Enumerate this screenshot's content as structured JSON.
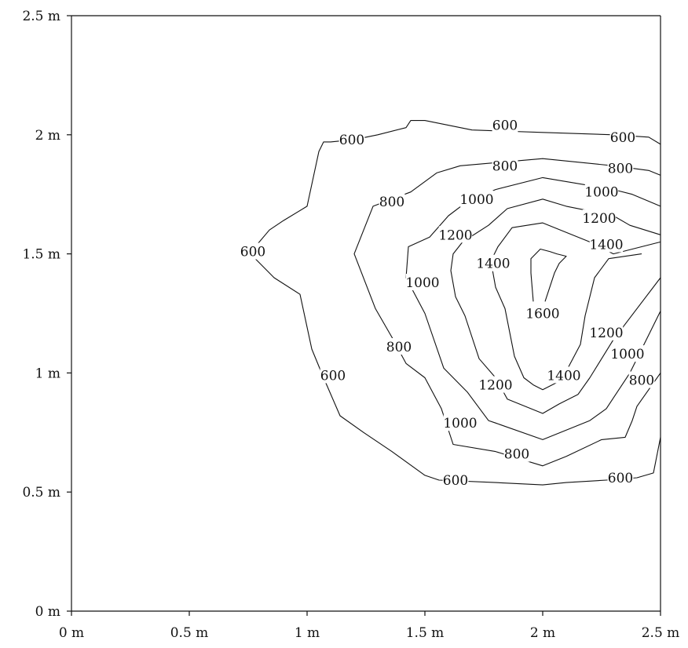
{
  "chart_data": {
    "type": "contour",
    "title": "",
    "xlabel": "",
    "ylabel": "",
    "xlim": [
      0,
      2.5
    ],
    "ylim": [
      0,
      2.5
    ],
    "grid": false,
    "x_ticks": [
      {
        "value": 0,
        "label": "0 m"
      },
      {
        "value": 0.5,
        "label": "0.5 m"
      },
      {
        "value": 1,
        "label": "1 m"
      },
      {
        "value": 1.5,
        "label": "1.5 m"
      },
      {
        "value": 2,
        "label": "2 m"
      },
      {
        "value": 2.5,
        "label": "2.5 m"
      }
    ],
    "y_ticks": [
      {
        "value": 0,
        "label": "0 m"
      },
      {
        "value": 0.5,
        "label": "0.5 m"
      },
      {
        "value": 1,
        "label": "1 m"
      },
      {
        "value": 1.5,
        "label": "1.5 m"
      },
      {
        "value": 2,
        "label": "2 m"
      },
      {
        "value": 2.5,
        "label": "2.5 m"
      }
    ],
    "contours": [
      {
        "level": 600,
        "points": [
          [
            2.5,
            1.96
          ],
          [
            2.45,
            1.99
          ],
          [
            2.3,
            2.0
          ],
          [
            2.0,
            2.01
          ],
          [
            1.7,
            2.02
          ],
          [
            1.5,
            2.06
          ],
          [
            1.44,
            2.06
          ],
          [
            1.42,
            2.03
          ],
          [
            1.3,
            2.0
          ],
          [
            1.2,
            1.98
          ],
          [
            1.1,
            1.97
          ],
          [
            1.07,
            1.97
          ],
          [
            1.05,
            1.93
          ],
          [
            1.0,
            1.7
          ],
          [
            0.9,
            1.64
          ],
          [
            0.84,
            1.6
          ],
          [
            0.78,
            1.53
          ],
          [
            0.78,
            1.48
          ],
          [
            0.86,
            1.4
          ],
          [
            0.97,
            1.33
          ],
          [
            1.02,
            1.1
          ],
          [
            1.07,
            0.98
          ],
          [
            1.14,
            0.82
          ],
          [
            1.24,
            0.75
          ],
          [
            1.36,
            0.67
          ],
          [
            1.5,
            0.57
          ],
          [
            1.56,
            0.55
          ],
          [
            1.8,
            0.54
          ],
          [
            2.0,
            0.53
          ],
          [
            2.1,
            0.54
          ],
          [
            2.27,
            0.55
          ],
          [
            2.4,
            0.56
          ],
          [
            2.47,
            0.58
          ],
          [
            2.5,
            0.73
          ]
        ],
        "labels": [
          [
            1.84,
            2.04
          ],
          [
            2.34,
            1.99
          ],
          [
            1.19,
            1.98
          ],
          [
            0.77,
            1.51
          ],
          [
            1.11,
            0.99
          ],
          [
            1.63,
            0.55
          ],
          [
            2.33,
            0.56
          ]
        ]
      },
      {
        "level": 800,
        "points": [
          [
            2.5,
            1.83
          ],
          [
            2.45,
            1.85
          ],
          [
            2.3,
            1.87
          ],
          [
            2.0,
            1.9
          ],
          [
            1.65,
            1.87
          ],
          [
            1.55,
            1.84
          ],
          [
            1.44,
            1.76
          ],
          [
            1.28,
            1.7
          ],
          [
            1.2,
            1.5
          ],
          [
            1.29,
            1.27
          ],
          [
            1.36,
            1.15
          ],
          [
            1.42,
            1.04
          ],
          [
            1.5,
            0.98
          ],
          [
            1.57,
            0.85
          ],
          [
            1.62,
            0.7
          ],
          [
            1.8,
            0.67
          ],
          [
            2.0,
            0.61
          ],
          [
            2.1,
            0.65
          ],
          [
            2.25,
            0.72
          ],
          [
            2.35,
            0.73
          ],
          [
            2.38,
            0.8
          ],
          [
            2.4,
            0.86
          ],
          [
            2.5,
            1.0
          ]
        ],
        "labels": [
          [
            1.84,
            1.87
          ],
          [
            2.33,
            1.86
          ],
          [
            1.36,
            1.72
          ],
          [
            1.39,
            1.11
          ],
          [
            2.42,
            0.97
          ],
          [
            1.89,
            0.66
          ]
        ]
      },
      {
        "level": 1000,
        "points": [
          [
            2.5,
            1.7
          ],
          [
            2.38,
            1.75
          ],
          [
            2.3,
            1.77
          ],
          [
            2.0,
            1.82
          ],
          [
            1.8,
            1.77
          ],
          [
            1.68,
            1.72
          ],
          [
            1.6,
            1.66
          ],
          [
            1.52,
            1.57
          ],
          [
            1.43,
            1.53
          ],
          [
            1.42,
            1.4
          ],
          [
            1.5,
            1.25
          ],
          [
            1.58,
            1.02
          ],
          [
            1.68,
            0.92
          ],
          [
            1.77,
            0.8
          ],
          [
            1.8,
            0.79
          ],
          [
            2.0,
            0.72
          ],
          [
            2.2,
            0.8
          ],
          [
            2.27,
            0.85
          ],
          [
            2.37,
            1.0
          ],
          [
            2.5,
            1.26
          ]
        ],
        "labels": [
          [
            1.72,
            1.73
          ],
          [
            2.25,
            1.76
          ],
          [
            1.49,
            1.38
          ],
          [
            1.65,
            0.79
          ],
          [
            2.36,
            1.08
          ]
        ]
      },
      {
        "level": 1200,
        "points": [
          [
            2.5,
            1.58
          ],
          [
            2.37,
            1.62
          ],
          [
            2.3,
            1.66
          ],
          [
            2.1,
            1.7
          ],
          [
            2.0,
            1.73
          ],
          [
            1.85,
            1.69
          ],
          [
            1.77,
            1.62
          ],
          [
            1.66,
            1.55
          ],
          [
            1.62,
            1.5
          ],
          [
            1.61,
            1.43
          ],
          [
            1.63,
            1.32
          ],
          [
            1.67,
            1.24
          ],
          [
            1.73,
            1.06
          ],
          [
            1.8,
            0.98
          ],
          [
            1.85,
            0.89
          ],
          [
            2.0,
            0.83
          ],
          [
            2.07,
            0.87
          ],
          [
            2.15,
            0.91
          ],
          [
            2.2,
            0.98
          ],
          [
            2.3,
            1.14
          ],
          [
            2.5,
            1.4
          ]
        ],
        "labels": [
          [
            1.63,
            1.58
          ],
          [
            2.24,
            1.65
          ],
          [
            1.8,
            0.95
          ],
          [
            2.27,
            1.17
          ]
        ]
      },
      {
        "level": 1400,
        "points": [
          [
            2.5,
            1.55
          ],
          [
            2.3,
            1.5
          ],
          [
            2.2,
            1.55
          ],
          [
            2.0,
            1.63
          ],
          [
            1.87,
            1.61
          ],
          [
            1.81,
            1.53
          ],
          [
            1.78,
            1.47
          ],
          [
            1.8,
            1.36
          ],
          [
            1.84,
            1.27
          ],
          [
            1.88,
            1.07
          ],
          [
            1.92,
            0.98
          ],
          [
            1.96,
            0.95
          ],
          [
            2.0,
            0.93
          ],
          [
            2.08,
            0.97
          ],
          [
            2.16,
            1.12
          ],
          [
            2.18,
            1.24
          ],
          [
            2.22,
            1.4
          ],
          [
            2.28,
            1.48
          ],
          [
            2.42,
            1.5
          ]
        ],
        "labels": [
          [
            1.79,
            1.46
          ],
          [
            2.27,
            1.54
          ],
          [
            2.09,
            0.99
          ]
        ]
      },
      {
        "level": 1600,
        "points": [
          [
            1.96,
            1.3
          ],
          [
            1.95,
            1.42
          ],
          [
            1.95,
            1.48
          ],
          [
            1.99,
            1.52
          ],
          [
            2.03,
            1.51
          ],
          [
            2.06,
            1.5
          ],
          [
            2.1,
            1.49
          ],
          [
            2.07,
            1.46
          ],
          [
            2.05,
            1.42
          ],
          [
            2.03,
            1.36
          ],
          [
            2.01,
            1.3
          ]
        ],
        "labels": [
          [
            2.0,
            1.25
          ]
        ]
      }
    ]
  }
}
